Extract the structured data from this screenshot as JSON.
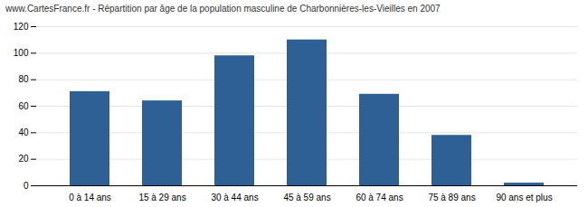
{
  "chart_data": {
    "type": "bar",
    "title": "www.CartesFrance.fr - Répartition par âge de la population masculine de Charbonnières-les-Vieilles en 2007",
    "categories": [
      "0 à 14 ans",
      "15 à 29 ans",
      "30 à 44 ans",
      "45 à 59 ans",
      "60 à 74 ans",
      "75 à 89 ans",
      "90 ans et plus"
    ],
    "values": [
      71,
      64,
      98,
      110,
      69,
      38,
      2
    ],
    "color": "#2e6096",
    "ylim": [
      0,
      120
    ],
    "yticks": [
      0,
      20,
      40,
      60,
      80,
      100,
      120
    ],
    "grid": true
  }
}
